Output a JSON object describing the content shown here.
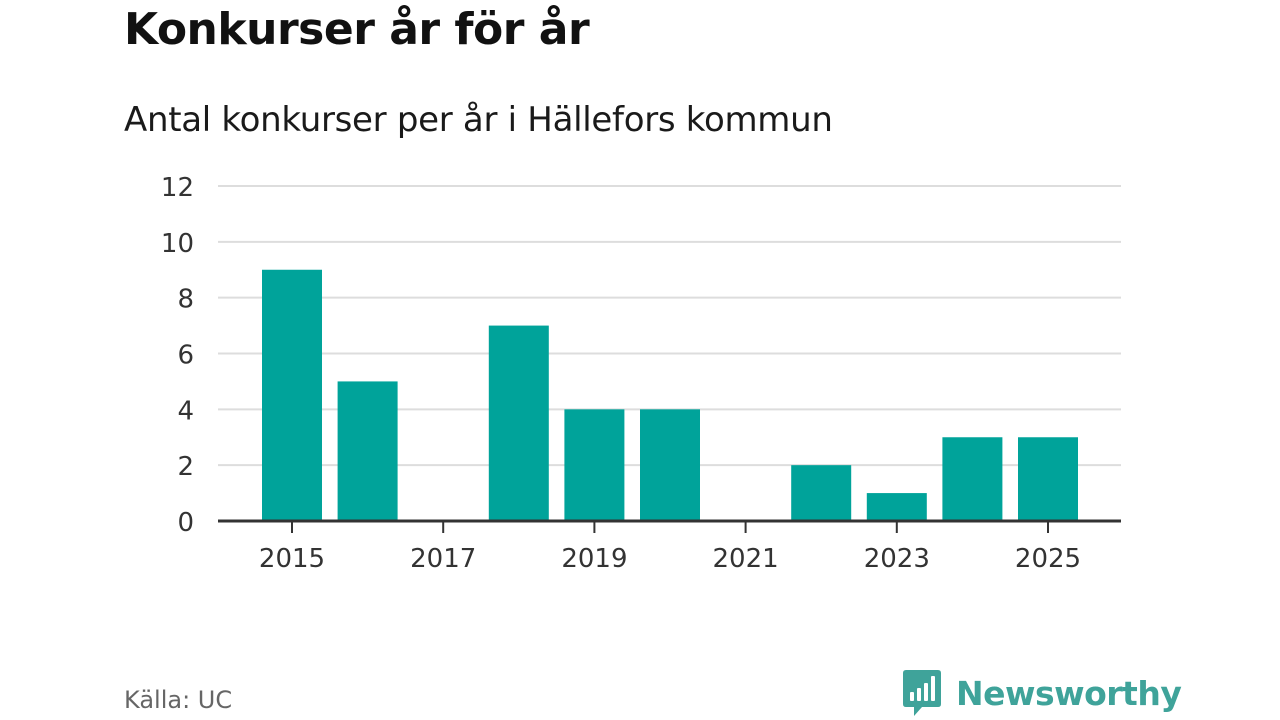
{
  "colors": {
    "bar": "#00A39A",
    "grid": "#dddddd",
    "axis": "#333333",
    "brand": "#3fa39a"
  },
  "chart_data": {
    "type": "bar",
    "title": "Konkurser år för år",
    "subtitle": "Antal konkurser per år i Hällefors kommun",
    "xlabel": "",
    "ylabel": "",
    "categories": [
      "2015",
      "2016",
      "2017",
      "2018",
      "2019",
      "2020",
      "2021",
      "2022",
      "2023",
      "2024",
      "2025"
    ],
    "values": [
      9,
      5,
      0,
      7,
      4,
      4,
      0,
      2,
      1,
      3,
      3
    ],
    "ylim": [
      0,
      12
    ],
    "yticks": [
      0,
      2,
      4,
      6,
      8,
      10,
      12
    ],
    "xtick_labels": [
      "2015",
      "2017",
      "2019",
      "2021",
      "2023",
      "2025"
    ],
    "grid": true,
    "legend": "none"
  },
  "footer": {
    "source": "Källa: UC",
    "brand_name": "Newsworthy",
    "brand_icon": "newsworthy-logo-icon"
  }
}
